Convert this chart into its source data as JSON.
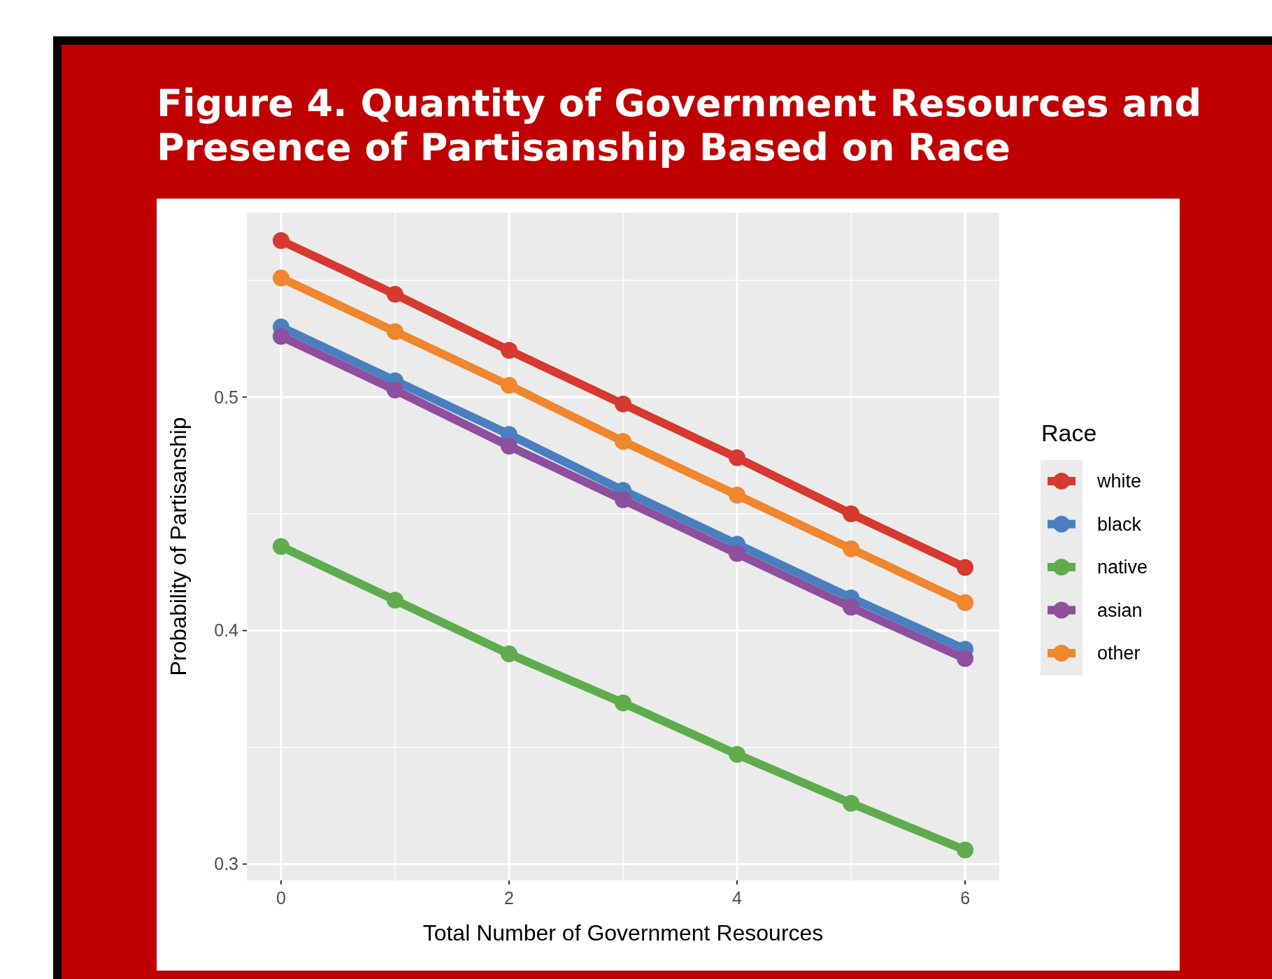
{
  "chart_data": {
    "type": "line",
    "title": "Figure 4. Quantity of Government Resources and Presence of Partisanship Based on Race",
    "xlabel": "Total Number of Government Resources",
    "ylabel": "Probability of Partisanship",
    "legend_title": "Race",
    "x": [
      0,
      1,
      2,
      3,
      4,
      5,
      6
    ],
    "series": [
      {
        "name": "white",
        "color": "#d6392f",
        "values": [
          0.567,
          0.544,
          0.52,
          0.497,
          0.474,
          0.45,
          0.427
        ]
      },
      {
        "name": "black",
        "color": "#4a7fbf",
        "values": [
          0.53,
          0.507,
          0.484,
          0.46,
          0.437,
          0.414,
          0.392
        ]
      },
      {
        "name": "native",
        "color": "#5fac4f",
        "values": [
          0.436,
          0.413,
          0.39,
          0.369,
          0.347,
          0.326,
          0.306
        ]
      },
      {
        "name": "asian",
        "color": "#8e4f9f",
        "values": [
          0.526,
          0.503,
          0.479,
          0.456,
          0.433,
          0.41,
          0.388
        ]
      },
      {
        "name": "other",
        "color": "#f0862e",
        "values": [
          0.551,
          0.528,
          0.505,
          0.481,
          0.458,
          0.435,
          0.412
        ]
      }
    ],
    "xlim": [
      -0.3,
      6.3
    ],
    "xticks": [
      0,
      2,
      4,
      6
    ],
    "ylim": [
      0.293,
      0.579
    ],
    "yticks": [
      0.3,
      0.4,
      0.5
    ],
    "grid": true,
    "legend": "right",
    "marker": "circle",
    "line_style": "solid"
  }
}
